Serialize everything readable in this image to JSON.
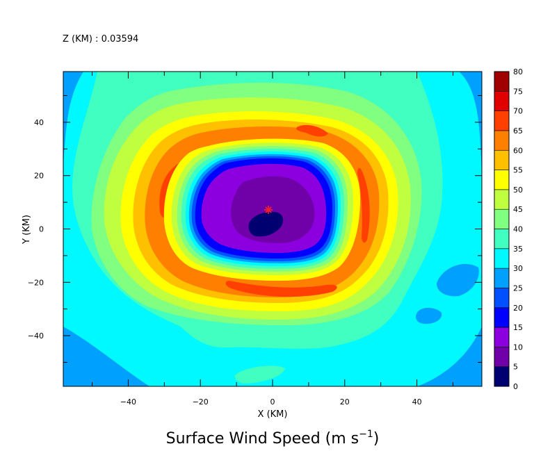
{
  "chart_data": {
    "type": "heatmap",
    "subtype": "filled-contour",
    "level_label": "Z (KM) : 0.03594",
    "title_main": "Surface Wind Speed (m s",
    "title_sup": "−1",
    "title_close": ")",
    "xlabel": "X (KM)",
    "ylabel": "Y (KM)",
    "xlim": [
      -58,
      58
    ],
    "ylim": [
      -59,
      59
    ],
    "x_ticks": [
      -40,
      -20,
      0,
      20,
      40
    ],
    "y_ticks": [
      40,
      20,
      0,
      -20,
      -40
    ],
    "colorbar": {
      "levels": [
        0,
        5,
        10,
        15,
        20,
        25,
        30,
        35,
        40,
        45,
        50,
        55,
        60,
        65,
        70,
        75,
        80
      ],
      "colors": [
        "#000070",
        "#7000a8",
        "#8c00e0",
        "#0000ff",
        "#0050ff",
        "#00a0ff",
        "#00f8ff",
        "#40ffc0",
        "#80ff80",
        "#c0ff40",
        "#ffff00",
        "#ffc000",
        "#ff8000",
        "#ff4000",
        "#e00000",
        "#a00000"
      ]
    },
    "storm_center_marker": {
      "x": -1,
      "y": 7,
      "symbol": "*",
      "color": "#ff2020"
    },
    "grid": false,
    "legend": "right (colorbar)"
  }
}
